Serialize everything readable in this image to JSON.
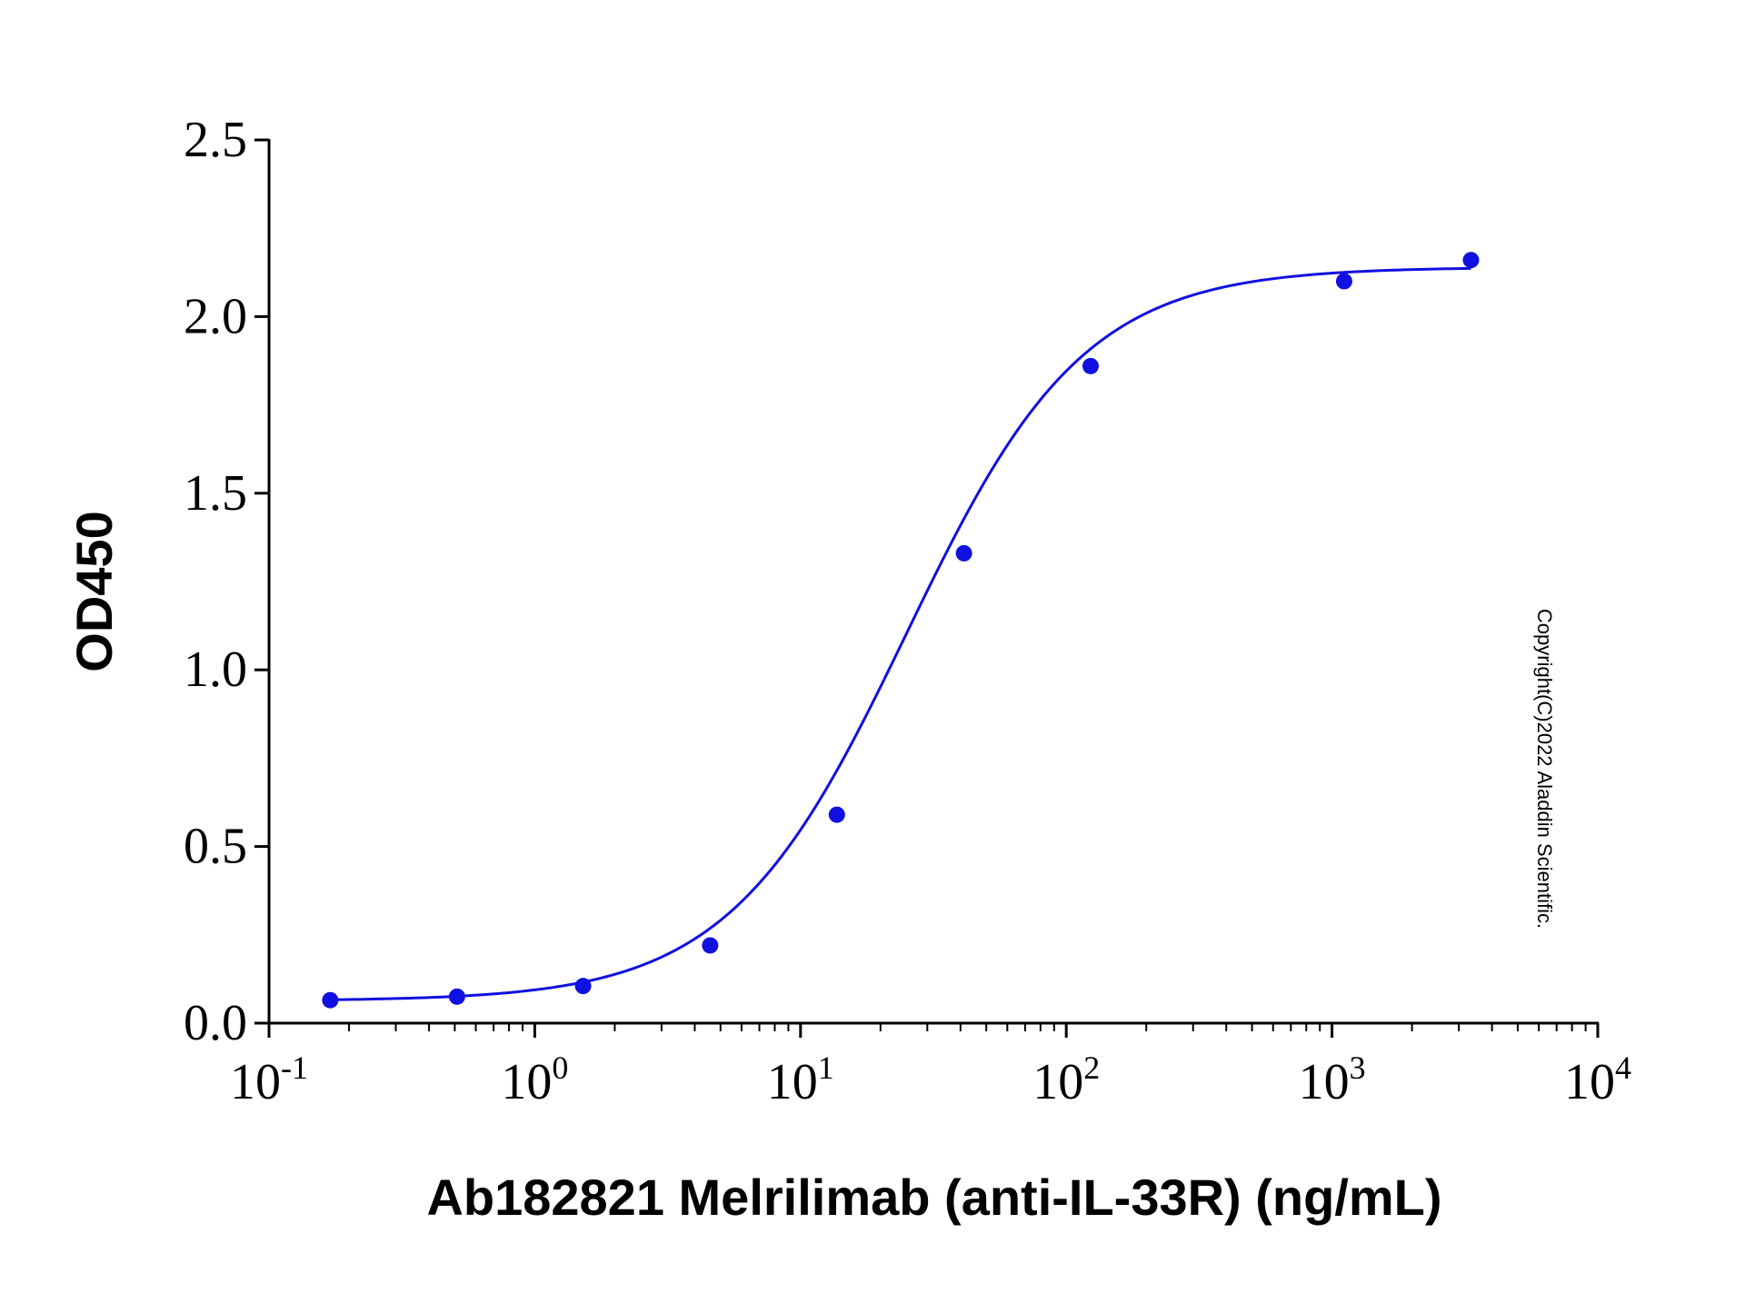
{
  "chart_data": {
    "type": "scatter",
    "title": "",
    "xlabel": "Ab182821 Melrilimab (anti-IL-33R) (ng/mL)",
    "ylabel": "OD450",
    "x_scale": "log",
    "xlim": [
      0.1,
      10000
    ],
    "ylim": [
      0,
      2.5
    ],
    "x_ticks": [
      {
        "base": "10",
        "exp": "-1"
      },
      {
        "base": "10",
        "exp": "0"
      },
      {
        "base": "10",
        "exp": "1"
      },
      {
        "base": "10",
        "exp": "2"
      },
      {
        "base": "10",
        "exp": "3"
      },
      {
        "base": "10",
        "exp": "4"
      }
    ],
    "y_ticks": [
      "0.0",
      "0.5",
      "1.0",
      "1.5",
      "2.0",
      "2.5"
    ],
    "grid": false,
    "legend": "none",
    "series": [
      {
        "x": [
          0.17,
          0.51,
          1.52,
          4.57,
          13.7,
          41.2,
          123.5,
          1111,
          3333
        ],
        "y": [
          0.065,
          0.075,
          0.105,
          0.22,
          0.59,
          1.33,
          1.86,
          2.1,
          2.16
        ],
        "color": "#1010e0",
        "marker": "circle",
        "fit": {
          "model": "4PL",
          "bottom": 0.063,
          "top": 2.14,
          "ec50": 25,
          "hill": 1.3,
          "x_range": [
            0.17,
            3333
          ]
        }
      }
    ],
    "annotations": [
      "Copyright(C)2022 Aladdin Scientific."
    ]
  }
}
